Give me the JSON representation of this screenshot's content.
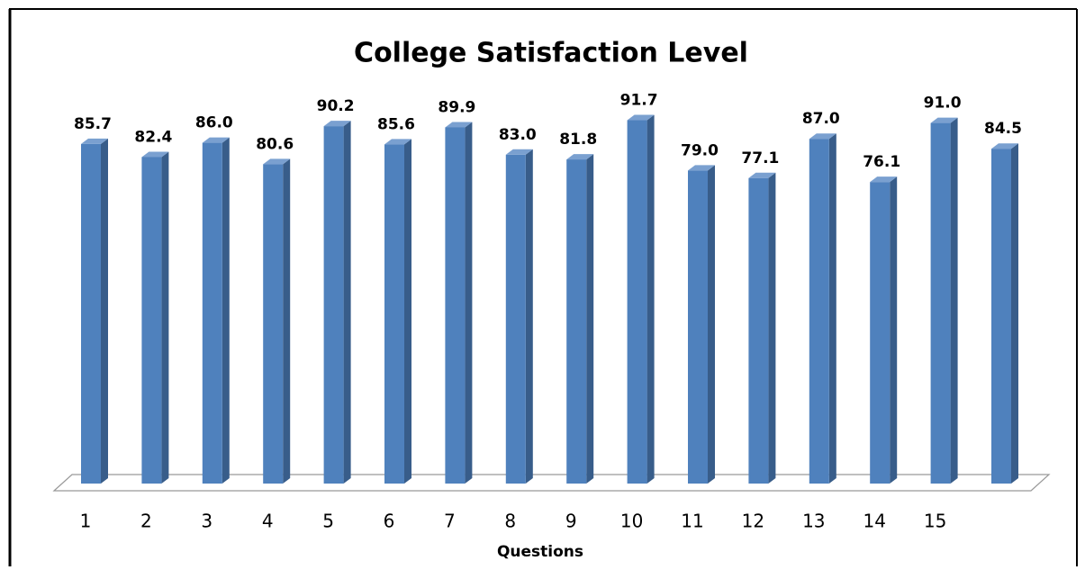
{
  "chart_data": {
    "type": "bar3d",
    "title": "College Satisfaction Level",
    "x_label": "Questions",
    "categories": [
      "1",
      "2",
      "3",
      "4",
      "5",
      "6",
      "7",
      "8",
      "9",
      "10",
      "11",
      "12",
      "13",
      "14",
      "15",
      null
    ],
    "values": [
      85.7,
      82.4,
      86.0,
      80.6,
      90.2,
      85.6,
      89.9,
      83.0,
      81.8,
      91.7,
      79.0,
      77.1,
      87.0,
      76.1,
      91.0,
      84.5
    ],
    "value_labels": [
      "85.7",
      "82.4",
      "86.0",
      "80.6",
      "90.2",
      "85.6",
      "89.9",
      "83.0",
      "81.8",
      "91.7",
      "79.0",
      "77.1",
      "87.0",
      "76.1",
      "91.0",
      "84.5"
    ],
    "color": "#4f81bd"
  }
}
